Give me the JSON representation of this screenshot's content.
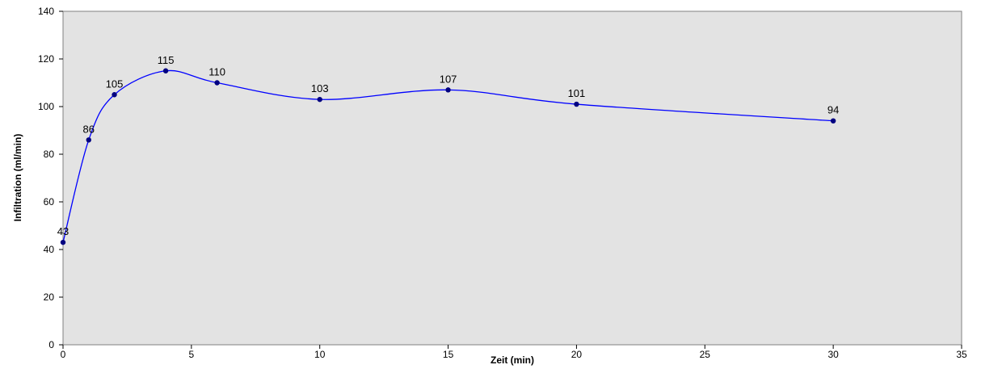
{
  "chart_data": {
    "type": "line",
    "title": "",
    "xlabel": "Zeit (min)",
    "ylabel": "Infiltration (ml/min)",
    "xlim": [
      0,
      35
    ],
    "ylim": [
      0,
      140
    ],
    "xticks": [
      "0",
      "5",
      "10",
      "15",
      "20",
      "25",
      "30",
      "35"
    ],
    "yticks": [
      "0",
      "20",
      "40",
      "60",
      "80",
      "100",
      "120",
      "140"
    ],
    "x": [
      0,
      1,
      2,
      4,
      6,
      10,
      15,
      20,
      30
    ],
    "series": [
      {
        "values": [
          43,
          86,
          105,
          115,
          110,
          103,
          107,
          101,
          94
        ],
        "labels": [
          "43",
          "86",
          "105",
          "115",
          "110",
          "103",
          "107",
          "101",
          "94"
        ]
      }
    ],
    "grid": false,
    "legend": "none",
    "colors": {
      "plot_background": "#e3e3e3",
      "line": "#0000ff",
      "marker": "#000080"
    }
  }
}
